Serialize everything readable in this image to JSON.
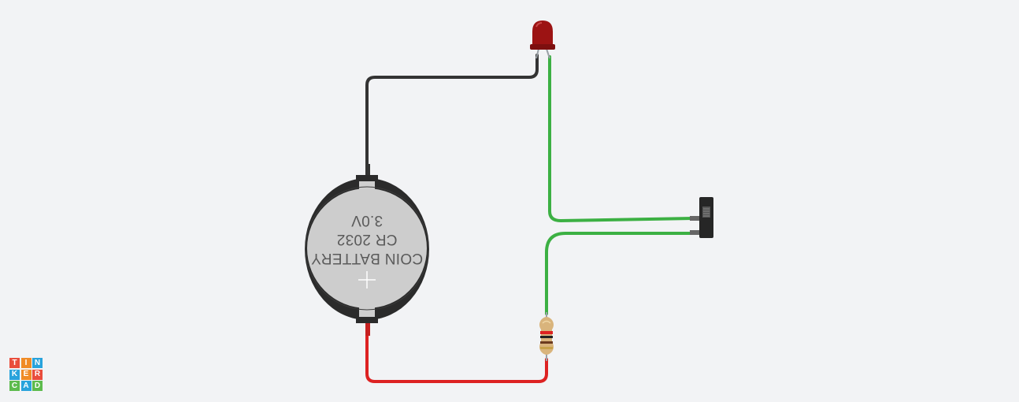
{
  "app": {
    "logo_letters": [
      "T",
      "I",
      "N",
      "K",
      "E",
      "R",
      "C",
      "A",
      "D"
    ],
    "logo_colors": [
      "#e94d3c",
      "#f08b26",
      "#29a3dc",
      "#29a3dc",
      "#f08b26",
      "#e94d3c",
      "#5dbb4d",
      "#29a3dc",
      "#5dbb4d"
    ]
  },
  "battery": {
    "line1": "COIN BATTERY",
    "line2": "CR 2032",
    "line3": "3.0V"
  },
  "colors": {
    "background": "#f2f3f5",
    "wire_black": "#333333",
    "wire_green": "#3cb043",
    "wire_red": "#dd2222",
    "led_red": "#9c1313"
  }
}
